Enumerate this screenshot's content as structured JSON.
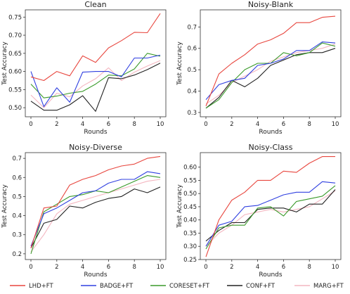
{
  "legend": [
    {
      "name": "LHD+FT",
      "color": "#e8473f"
    },
    {
      "name": "BADGE+FT",
      "color": "#3040e0"
    },
    {
      "name": "CORESET+FT",
      "color": "#3a9a2a"
    },
    {
      "name": "CONF+FT",
      "color": "#222222"
    },
    {
      "name": "MARG+FT",
      "color": "#f4b6c0"
    }
  ],
  "chart_data": [
    {
      "type": "line",
      "title": "Clean",
      "xlabel": "Rounds",
      "ylabel": "Test Accuracy",
      "xlim": [
        0,
        10
      ],
      "ylim": [
        0.475,
        0.77
      ],
      "xticks": [
        "0",
        "2",
        "4",
        "6",
        "8",
        "10"
      ],
      "yticks": [
        "0.50",
        "0.55",
        "0.60",
        "0.65",
        "0.70",
        "0.75"
      ],
      "x": [
        0,
        1,
        2,
        3,
        4,
        5,
        6,
        7,
        8,
        9,
        10
      ],
      "series": [
        {
          "name": "LHD+FT",
          "color": "#e8473f",
          "values": [
            0.585,
            0.575,
            0.6,
            0.588,
            0.643,
            0.625,
            0.665,
            0.685,
            0.708,
            0.707,
            0.76
          ]
        },
        {
          "name": "BADGE+FT",
          "color": "#3040e0",
          "values": [
            0.6,
            0.503,
            0.555,
            0.515,
            0.598,
            0.6,
            0.6,
            0.585,
            0.637,
            0.637,
            0.645
          ]
        },
        {
          "name": "CORESET+FT",
          "color": "#3a9a2a",
          "values": [
            0.565,
            0.527,
            0.532,
            0.54,
            0.545,
            0.565,
            0.59,
            0.588,
            0.607,
            0.65,
            0.642
          ]
        },
        {
          "name": "CONF+FT",
          "color": "#222222",
          "values": [
            0.518,
            0.493,
            0.493,
            0.508,
            0.533,
            0.49,
            0.583,
            0.58,
            0.59,
            0.605,
            0.623
          ]
        },
        {
          "name": "MARG+FT",
          "color": "#f4b6c0",
          "values": [
            0.535,
            0.5,
            0.54,
            0.53,
            0.56,
            0.58,
            0.61,
            0.575,
            0.598,
            0.615,
            0.63
          ]
        }
      ]
    },
    {
      "type": "line",
      "title": "Noisy-Blank",
      "xlabel": "Rounds",
      "ylabel": "Test Accuracy",
      "xlim": [
        0,
        10
      ],
      "ylim": [
        0.28,
        0.78
      ],
      "xticks": [
        "0",
        "2",
        "4",
        "6",
        "8",
        "10"
      ],
      "yticks": [
        "0.3",
        "0.4",
        "0.5",
        "0.6",
        "0.7"
      ],
      "x": [
        0,
        1,
        2,
        3,
        4,
        5,
        6,
        7,
        8,
        9,
        10
      ],
      "series": [
        {
          "name": "LHD+FT",
          "color": "#e8473f",
          "values": [
            0.33,
            0.48,
            0.53,
            0.57,
            0.62,
            0.64,
            0.67,
            0.72,
            0.72,
            0.745,
            0.75
          ]
        },
        {
          "name": "BADGE+FT",
          "color": "#3040e0",
          "values": [
            0.36,
            0.43,
            0.45,
            0.46,
            0.52,
            0.53,
            0.55,
            0.59,
            0.59,
            0.63,
            0.625
          ]
        },
        {
          "name": "CORESET+FT",
          "color": "#3a9a2a",
          "values": [
            0.32,
            0.36,
            0.44,
            0.5,
            0.53,
            0.53,
            0.58,
            0.565,
            0.58,
            0.625,
            0.61
          ]
        },
        {
          "name": "CONF+FT",
          "color": "#222222",
          "values": [
            0.32,
            0.37,
            0.45,
            0.42,
            0.46,
            0.52,
            0.545,
            0.57,
            0.58,
            0.58,
            0.6
          ]
        },
        {
          "name": "MARG+FT",
          "color": "#f4b6c0",
          "values": [
            0.34,
            0.38,
            0.44,
            0.47,
            0.5,
            0.54,
            0.56,
            0.58,
            0.59,
            0.6,
            0.62
          ]
        }
      ]
    },
    {
      "type": "line",
      "title": "Noisy-Diverse",
      "xlabel": "Rounds",
      "ylabel": "Test Accuracy",
      "xlim": [
        0,
        10
      ],
      "ylim": [
        0.17,
        0.73
      ],
      "xticks": [
        "0",
        "2",
        "4",
        "6",
        "8",
        "10"
      ],
      "yticks": [
        "0.2",
        "0.3",
        "0.4",
        "0.5",
        "0.6",
        "0.7"
      ],
      "x": [
        0,
        1,
        2,
        3,
        4,
        5,
        6,
        7,
        8,
        9,
        10
      ],
      "series": [
        {
          "name": "LHD+FT",
          "color": "#e8473f",
          "values": [
            0.23,
            0.44,
            0.45,
            0.56,
            0.59,
            0.61,
            0.64,
            0.66,
            0.67,
            0.7,
            0.71
          ]
        },
        {
          "name": "BADGE+FT",
          "color": "#3040e0",
          "values": [
            0.24,
            0.41,
            0.44,
            0.48,
            0.52,
            0.53,
            0.57,
            0.59,
            0.59,
            0.63,
            0.62
          ]
        },
        {
          "name": "CORESET+FT",
          "color": "#3a9a2a",
          "values": [
            0.2,
            0.42,
            0.46,
            0.5,
            0.51,
            0.53,
            0.52,
            0.55,
            0.58,
            0.61,
            0.6
          ]
        },
        {
          "name": "CONF+FT",
          "color": "#222222",
          "values": [
            0.23,
            0.36,
            0.38,
            0.45,
            0.44,
            0.47,
            0.49,
            0.5,
            0.54,
            0.52,
            0.55
          ]
        },
        {
          "name": "MARG+FT",
          "color": "#f4b6c0",
          "values": [
            0.21,
            0.3,
            0.41,
            0.46,
            0.48,
            0.5,
            0.52,
            0.54,
            0.56,
            0.58,
            0.59
          ]
        }
      ]
    },
    {
      "type": "line",
      "title": "Noisy-Class",
      "xlabel": "Rounds",
      "ylabel": "Test Accuracy",
      "xlim": [
        0,
        10
      ],
      "ylim": [
        0.25,
        0.655
      ],
      "xticks": [
        "0",
        "2",
        "4",
        "6",
        "8",
        "10"
      ],
      "yticks": [
        "0.25",
        "0.30",
        "0.35",
        "0.40",
        "0.45",
        "0.50",
        "0.55",
        "0.60"
      ],
      "x": [
        0,
        1,
        2,
        3,
        4,
        5,
        6,
        7,
        8,
        9,
        10
      ],
      "series": [
        {
          "name": "LHD+FT",
          "color": "#e8473f",
          "values": [
            0.26,
            0.4,
            0.475,
            0.505,
            0.55,
            0.55,
            0.585,
            0.58,
            0.615,
            0.64,
            0.64
          ]
        },
        {
          "name": "BADGE+FT",
          "color": "#3040e0",
          "values": [
            0.3,
            0.38,
            0.395,
            0.45,
            0.455,
            0.475,
            0.495,
            0.505,
            0.505,
            0.545,
            0.54
          ]
        },
        {
          "name": "CORESET+FT",
          "color": "#3a9a2a",
          "values": [
            0.29,
            0.37,
            0.38,
            0.38,
            0.445,
            0.45,
            0.415,
            0.47,
            0.48,
            0.49,
            0.53
          ]
        },
        {
          "name": "CONF+FT",
          "color": "#222222",
          "values": [
            0.32,
            0.36,
            0.39,
            0.39,
            0.44,
            0.445,
            0.445,
            0.43,
            0.46,
            0.46,
            0.515
          ]
        },
        {
          "name": "MARG+FT",
          "color": "#f4b6c0",
          "values": [
            0.3,
            0.35,
            0.38,
            0.42,
            0.43,
            0.44,
            0.43,
            0.44,
            0.45,
            0.48,
            0.51
          ]
        }
      ]
    }
  ]
}
